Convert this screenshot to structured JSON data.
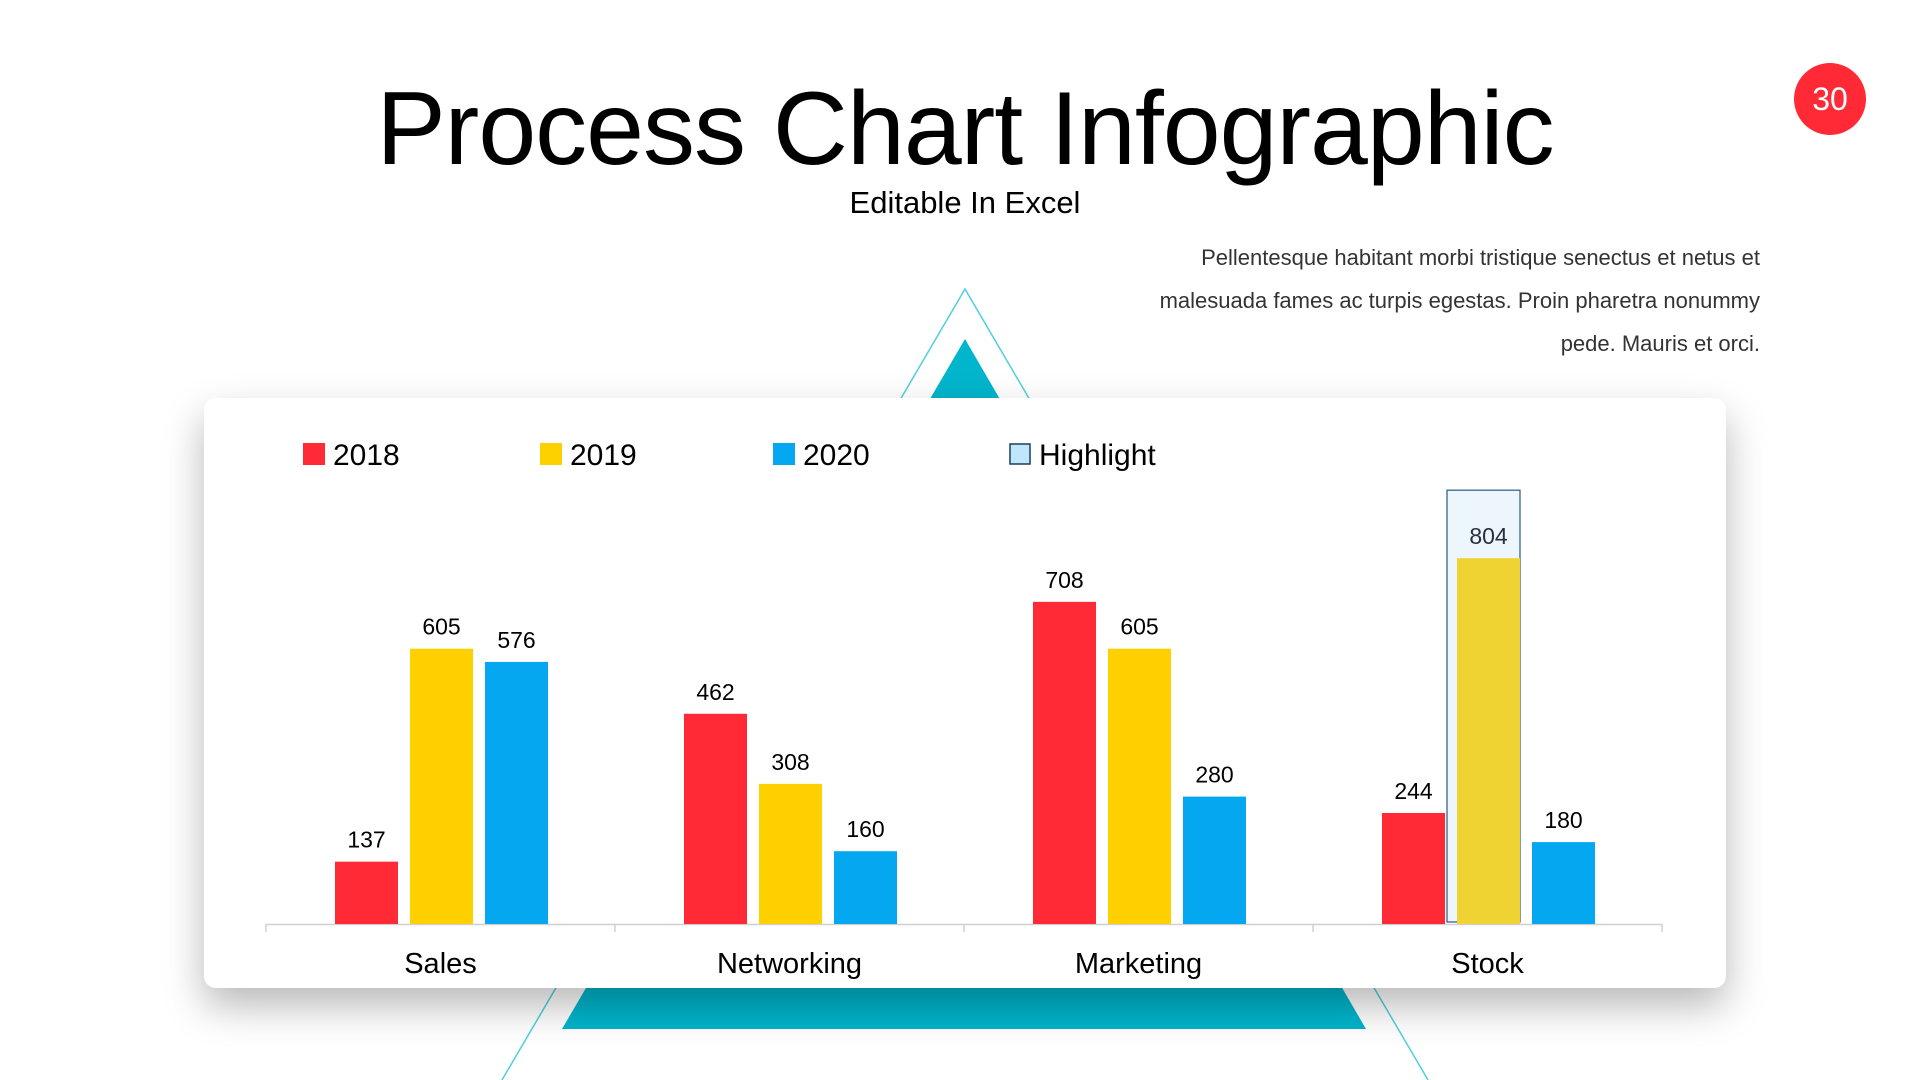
{
  "slide": {
    "title": "Process Chart Infographic",
    "subtitle": "Editable In Excel",
    "paragraph": "Pellentesque habitant morbi tristique senectus et netus et malesuada fames ac turpis egestas. Proin pharetra nonummy pede. Mauris et orci.",
    "page_number": "30",
    "accent_color": "#00b5cc",
    "badge_color": "#ff2a36"
  },
  "chart_data": {
    "type": "bar",
    "categories": [
      "Sales",
      "Networking",
      "Marketing",
      "Stock"
    ],
    "series": [
      {
        "name": "2018",
        "color": "#ff2a36",
        "values": [
          137,
          462,
          708,
          244
        ]
      },
      {
        "name": "2019",
        "color": "#ffd000",
        "values": [
          605,
          308,
          605,
          804
        ]
      },
      {
        "name": "2020",
        "color": "#05a8f0",
        "values": [
          576,
          160,
          280,
          180
        ]
      }
    ],
    "highlight": {
      "name": "Highlight",
      "category": "Stock",
      "series": "2019",
      "color": "#efd332",
      "box_fill": "#eef6fd",
      "box_stroke": "#2a5a80"
    },
    "data_labels": true,
    "grid": false,
    "y_axis_visible": false,
    "ylim": [
      0,
      804
    ],
    "legend_position": "top-left"
  }
}
